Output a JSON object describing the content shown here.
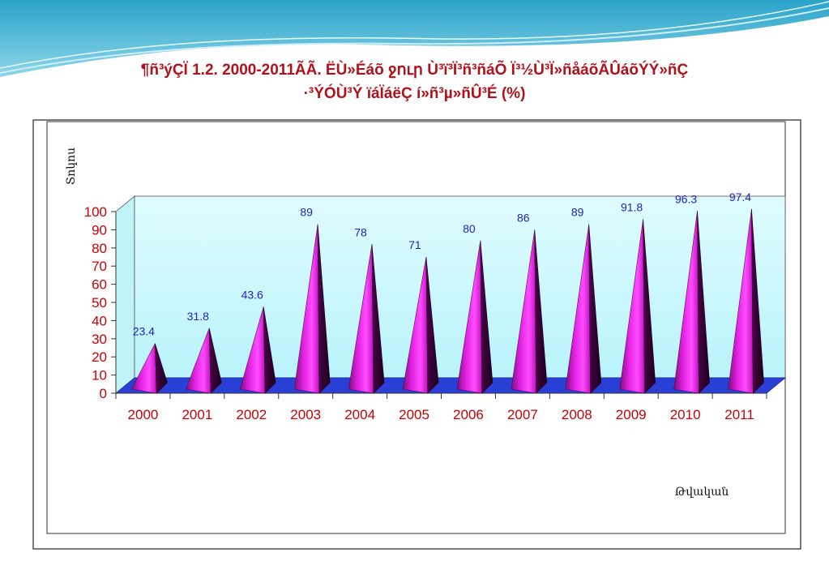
{
  "title": {
    "line1": "¶ñ³ýÇÏ 1.2. 2000-2011ÃÃ. ËÙ»Éáõ ջուր Ù³ï³Ï³ñ³ñáÕ Ï³½Ù³Ï»ñåáõÃÛáõÝÝ»ñÇ",
    "line2": "·³ÝÓÙ³Ý ïáÏáëÇ í»ñ³µ»ñÛ³É (%)"
  },
  "colors": {
    "title": "#b0121b",
    "axis_text": "#cc0000",
    "data_label": "#1f1fbf",
    "pyramid": "#cc14cc",
    "floor": "#2a3fd6",
    "back_wall": "#d6fbff"
  },
  "chart_data": {
    "type": "bar",
    "style": "3d-pyramid",
    "categories": [
      "2000",
      "2001",
      "2002",
      "2003",
      "2004",
      "2005",
      "2006",
      "2007",
      "2008",
      "2009",
      "2010",
      "2011"
    ],
    "values": [
      23.4,
      31.8,
      43.6,
      89,
      78,
      71,
      80,
      86,
      89,
      91.8,
      96.3,
      97.4
    ],
    "data_labels": [
      "23.4",
      "31.8",
      "43.6",
      "89",
      "78",
      "71",
      "80",
      "86",
      "89",
      "91.8",
      "96.3",
      "97.4"
    ],
    "ylabel": "Տոկոս",
    "xlabel": "Թվական",
    "ylim": [
      0,
      100
    ],
    "yticks": [
      "0",
      "10",
      "20",
      "30",
      "40",
      "50",
      "60",
      "70",
      "80",
      "90",
      "100"
    ],
    "grid": false,
    "legend": "none"
  }
}
